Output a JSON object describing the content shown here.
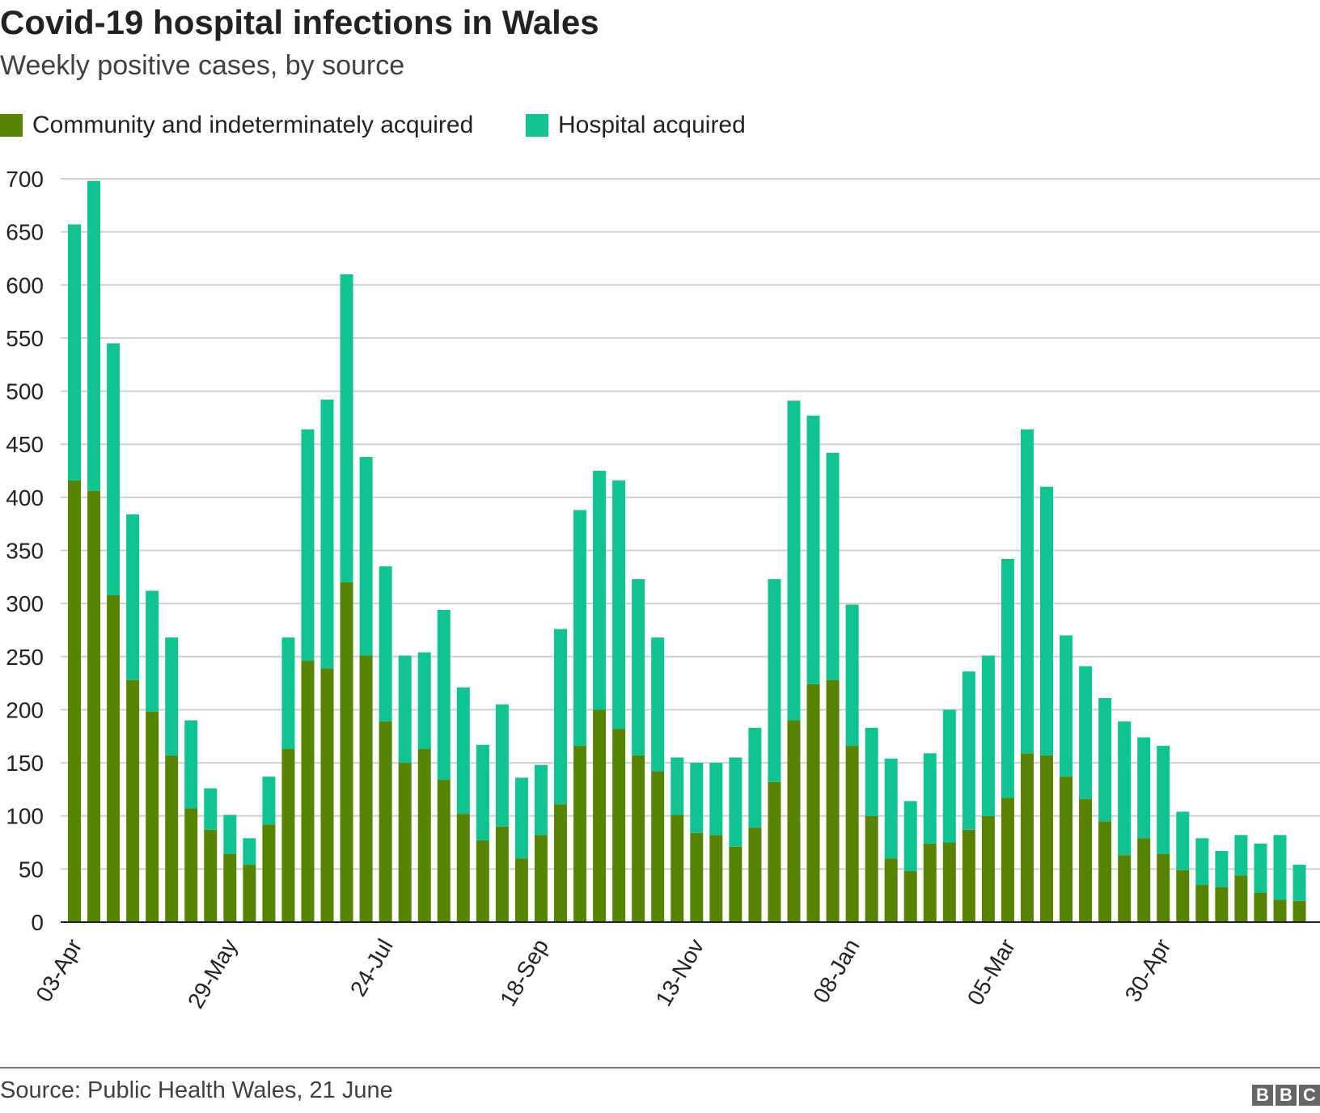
{
  "title": "Covid-19 hospital infections in Wales",
  "subtitle": "Weekly positive cases, by source",
  "source": "Source: Public Health Wales, 21 June",
  "logo": "BBC",
  "chart_data": {
    "type": "bar",
    "stacked": true,
    "ylim": [
      0,
      700
    ],
    "yticks": [
      0,
      50,
      100,
      150,
      200,
      250,
      300,
      350,
      400,
      450,
      500,
      550,
      600,
      650,
      700
    ],
    "grid": true,
    "legend_position": "top-left",
    "xtick_labels": [
      "03-Apr",
      "29-May",
      "24-Jul",
      "18-Sep",
      "13-Nov",
      "08-Jan",
      "05-Mar",
      "30-Apr"
    ],
    "xtick_every_weeks": 8,
    "series": [
      {
        "name": "Community and indeterminately acquired",
        "color": "#588300",
        "values": [
          416,
          406,
          308,
          228,
          198,
          157,
          107,
          87,
          64,
          54,
          92,
          163,
          246,
          239,
          320,
          251,
          189,
          150,
          163,
          134,
          102,
          77,
          90,
          60,
          82,
          111,
          166,
          200,
          182,
          157,
          142,
          101,
          84,
          82,
          71,
          89,
          132,
          190,
          224,
          228,
          166,
          100,
          60,
          48,
          74,
          75,
          87,
          100,
          117,
          159,
          157,
          137,
          116,
          95,
          63,
          79,
          64,
          49,
          35,
          33,
          44,
          28,
          21,
          20
        ]
      },
      {
        "name": "Hospital acquired",
        "color": "#12c392",
        "values": [
          241,
          292,
          237,
          156,
          114,
          111,
          83,
          39,
          37,
          25,
          45,
          105,
          218,
          253,
          290,
          187,
          146,
          101,
          91,
          160,
          119,
          90,
          115,
          76,
          66,
          165,
          222,
          225,
          234,
          166,
          126,
          54,
          66,
          68,
          84,
          94,
          191,
          301,
          253,
          214,
          133,
          83,
          94,
          66,
          85,
          125,
          149,
          151,
          225,
          305,
          253,
          133,
          125,
          116,
          126,
          95,
          102,
          55,
          44,
          34,
          38,
          46,
          61,
          34
        ]
      }
    ]
  }
}
